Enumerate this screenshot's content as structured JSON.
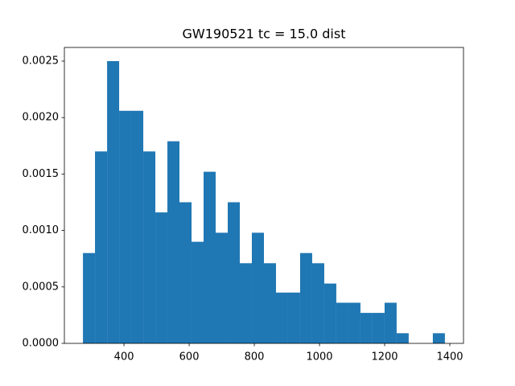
{
  "chart_data": {
    "type": "histogram",
    "title": "GW190521 tc = 15.0 dist",
    "color": "#1f77b4",
    "bins": [
      274,
      311,
      348.1,
      385.1,
      422.1,
      459.2,
      496.2,
      533.2,
      570.2,
      607.3,
      644.3,
      681.3,
      718.4,
      755.4,
      792.4,
      829.5,
      866.5,
      903.5,
      940.5,
      977.6,
      1014.6,
      1051.6,
      1088.7,
      1125.7,
      1162.7,
      1199.8,
      1236.8,
      1273.8,
      1310.8,
      1347.9,
      1384.9
    ],
    "values": [
      0.0008,
      0.0017,
      0.0025,
      0.00206,
      0.00206,
      0.0017,
      0.00116,
      0.00179,
      0.00125,
      0.0009,
      0.00152,
      0.00098,
      0.00125,
      0.00071,
      0.00098,
      0.00071,
      0.00045,
      0.00045,
      0.0008,
      0.00071,
      0.00053,
      0.00036,
      0.00036,
      0.00027,
      0.00027,
      0.00036,
      9e-05,
      0,
      0,
      9e-05
    ],
    "xlim": [
      217,
      1442
    ],
    "ylim": [
      0,
      0.002621
    ],
    "xticks": [
      400,
      600,
      800,
      1000,
      1200,
      1400
    ],
    "yticks": [
      {
        "value": 0,
        "label": "0.0000"
      },
      {
        "value": 0.0005,
        "label": "0.0005"
      },
      {
        "value": 0.001,
        "label": "0.0010"
      },
      {
        "value": 0.0015,
        "label": "0.0015"
      },
      {
        "value": 0.002,
        "label": "0.0020"
      },
      {
        "value": 0.0025,
        "label": "0.0025"
      }
    ]
  }
}
